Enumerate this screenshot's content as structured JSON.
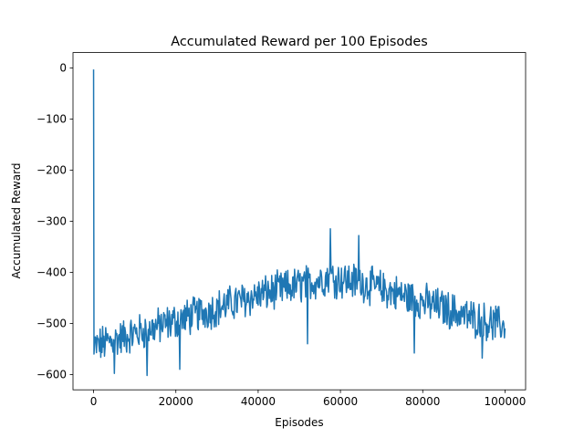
{
  "chart_data": {
    "type": "line",
    "title": "Accumulated Reward per 100 Episodes",
    "xlabel": "Episodes",
    "ylabel": "Accumulated Reward",
    "xlim": [
      -5000,
      105000
    ],
    "ylim": [
      -630,
      30
    ],
    "xticks": [
      0,
      20000,
      40000,
      60000,
      80000,
      100000
    ],
    "xtick_labels": [
      "0",
      "20000",
      "40000",
      "60000",
      "80000",
      "100000"
    ],
    "yticks": [
      0,
      -100,
      -200,
      -300,
      -400,
      -500,
      -600
    ],
    "ytick_labels": [
      "0",
      "−100",
      "−200",
      "−300",
      "−400",
      "−500",
      "−600"
    ],
    "grid": false,
    "series": [
      {
        "name": "Accumulated Reward",
        "color": "#1f77b4",
        "x_start": 0,
        "x_step": 100,
        "initial_spike": [
          {
            "x": 0,
            "y": -3
          },
          {
            "x": 100,
            "y": -560
          }
        ],
        "trend_points": [
          {
            "x": 200,
            "y": -545
          },
          {
            "x": 10000,
            "y": -520
          },
          {
            "x": 20000,
            "y": -495
          },
          {
            "x": 30000,
            "y": -470
          },
          {
            "x": 40000,
            "y": -445
          },
          {
            "x": 50000,
            "y": -425
          },
          {
            "x": 57000,
            "y": -410
          },
          {
            "x": 65000,
            "y": -420
          },
          {
            "x": 75000,
            "y": -445
          },
          {
            "x": 85000,
            "y": -470
          },
          {
            "x": 92000,
            "y": -490
          },
          {
            "x": 100000,
            "y": -505
          }
        ],
        "noise_amplitude": 32,
        "extreme_points": [
          {
            "x": 5000,
            "y": -598
          },
          {
            "x": 13000,
            "y": -602
          },
          {
            "x": 21000,
            "y": -590
          },
          {
            "x": 52000,
            "y": -540
          },
          {
            "x": 57500,
            "y": -315
          },
          {
            "x": 64500,
            "y": -328
          },
          {
            "x": 78000,
            "y": -558
          },
          {
            "x": 94500,
            "y": -568
          }
        ]
      }
    ]
  }
}
